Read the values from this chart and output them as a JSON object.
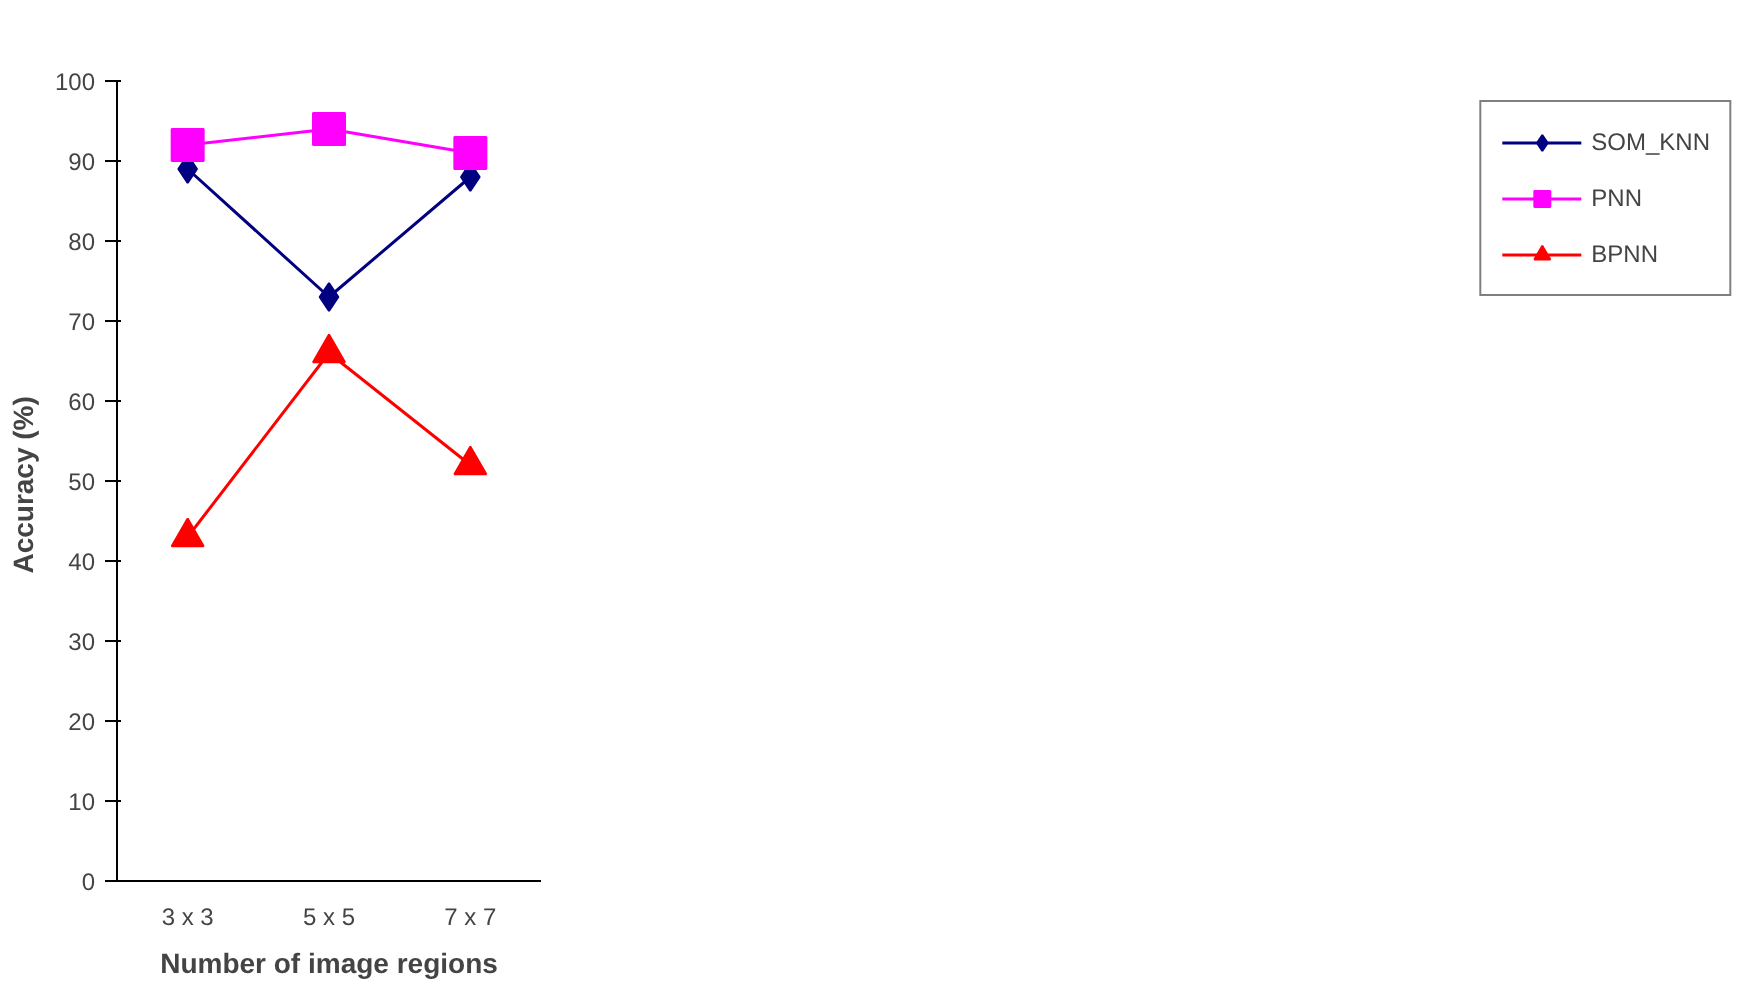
{
  "chart_data": {
    "type": "line",
    "xlabel": "Number of image regions",
    "ylabel": "Accuracy  (%)",
    "categories": [
      "3 x 3",
      "5 x 5",
      "7 x 7"
    ],
    "series": [
      {
        "name": "SOM_KNN",
        "color": "#000080",
        "marker": "diamond",
        "values": [
          89,
          73,
          88
        ]
      },
      {
        "name": "PNN",
        "color": "#ff00ff",
        "marker": "square",
        "values": [
          92,
          94,
          91
        ]
      },
      {
        "name": "BPNN",
        "color": "#ff0000",
        "marker": "triangle",
        "values": [
          43,
          66,
          52
        ]
      }
    ],
    "ylim": [
      0,
      100
    ],
    "yticks": [
      0,
      10,
      20,
      30,
      40,
      50,
      60,
      70,
      80,
      90,
      100
    ],
    "grid": false,
    "legend": "right"
  }
}
